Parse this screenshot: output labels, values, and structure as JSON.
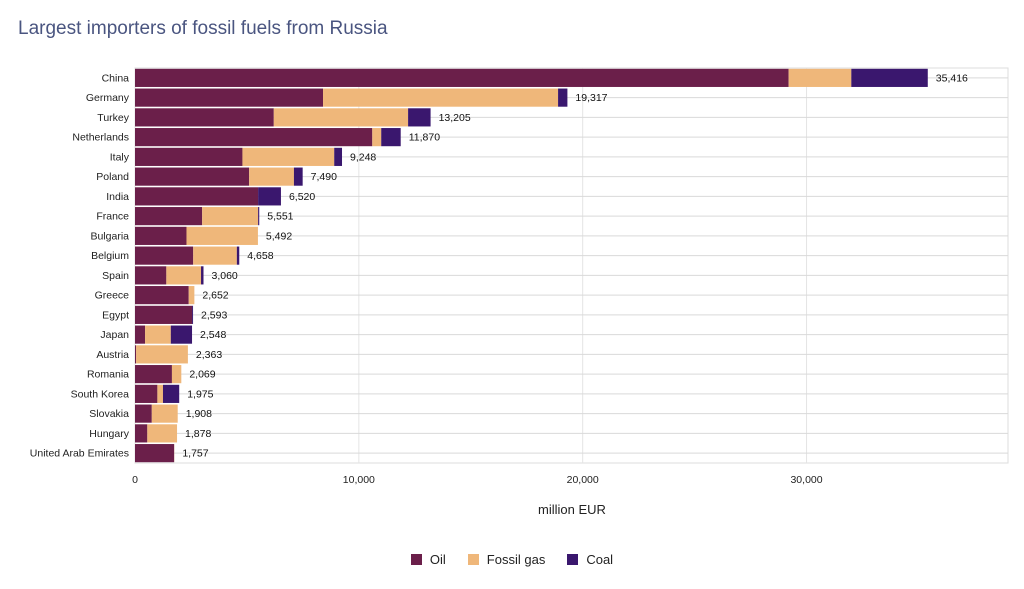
{
  "chart_data": {
    "type": "bar",
    "orientation": "horizontal",
    "stacked": true,
    "title": "Largest importers of fossil fuels from Russia",
    "xlabel": "million EUR",
    "ylabel": "",
    "xlim": [
      0,
      39000
    ],
    "xticks": [
      0,
      10000,
      20000,
      30000
    ],
    "xtick_labels": [
      "0",
      "10,000",
      "20,000",
      "30,000"
    ],
    "grid": true,
    "legend_position": "bottom",
    "categories": [
      "China",
      "Germany",
      "Turkey",
      "Netherlands",
      "Italy",
      "Poland",
      "India",
      "France",
      "Bulgaria",
      "Belgium",
      "Spain",
      "Greece",
      "Egypt",
      "Japan",
      "Austria",
      "Romania",
      "South Korea",
      "Slovakia",
      "Hungary",
      "United Arab Emirates"
    ],
    "series": [
      {
        "name": "Oil",
        "color": "#6b1f4a",
        "values": [
          29200,
          8400,
          6200,
          10600,
          4800,
          5100,
          5500,
          3000,
          2300,
          2600,
          1400,
          2400,
          2550,
          450,
          50,
          1650,
          1000,
          750,
          550,
          1750
        ]
      },
      {
        "name": "Fossil gas",
        "color": "#efb77a",
        "values": [
          2800,
          10500,
          6000,
          400,
          4100,
          2000,
          0,
          2500,
          3192,
          1950,
          1550,
          252,
          0,
          1150,
          2313,
          419,
          250,
          1158,
          1328,
          7
        ]
      },
      {
        "name": "Coal",
        "color": "#3a176e",
        "values": [
          3416,
          417,
          1005,
          870,
          348,
          390,
          1020,
          51,
          0,
          108,
          110,
          0,
          43,
          948,
          0,
          0,
          725,
          0,
          0,
          0
        ]
      }
    ],
    "totals": [
      35416,
      19317,
      13205,
      11870,
      9248,
      7490,
      6520,
      5551,
      5492,
      4658,
      3060,
      2652,
      2593,
      2548,
      2363,
      2069,
      1975,
      1908,
      1878,
      1757
    ],
    "total_labels": [
      "35,416",
      "19,317",
      "13,205",
      "11,870",
      "9,248",
      "7,490",
      "6,520",
      "5,551",
      "5,492",
      "4,658",
      "3,060",
      "2,652",
      "2,593",
      "2,548",
      "2,363",
      "2,069",
      "1,975",
      "1,908",
      "1,878",
      "1,757"
    ]
  }
}
